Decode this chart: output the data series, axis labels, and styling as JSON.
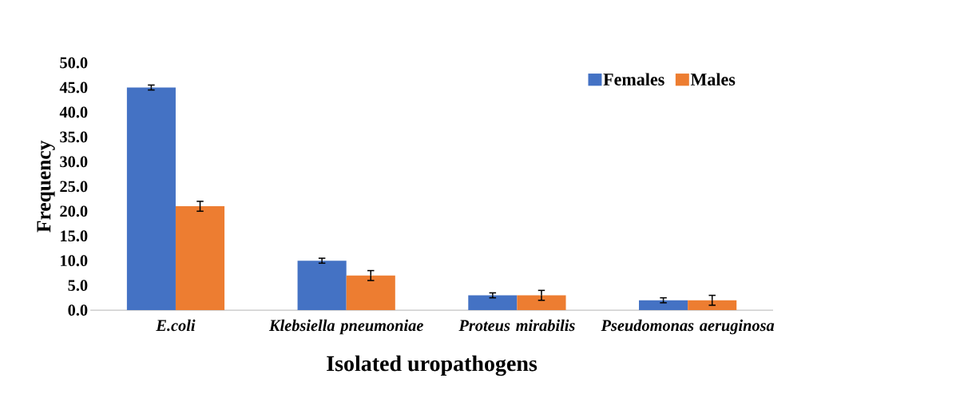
{
  "chart_data": {
    "type": "bar",
    "xlabel": "Isolated uropathogens",
    "ylabel": "Frequency",
    "categories": [
      "E.coli",
      "Klebsiella pneumoniae",
      "Proteus mirabilis",
      "Pseudomonas aeruginosa"
    ],
    "series": [
      {
        "name": "Females",
        "color": "#4472c4",
        "values": [
          45,
          10,
          3,
          2
        ],
        "errors": [
          0.5,
          0.5,
          0.5,
          0.5
        ]
      },
      {
        "name": "Males",
        "color": "#ed7d31",
        "values": [
          21,
          7,
          3,
          2
        ],
        "errors": [
          1,
          1,
          1,
          1
        ]
      }
    ],
    "ylim": [
      0,
      50
    ],
    "yticks": [
      {
        "value": 0,
        "label": "0.0"
      },
      {
        "value": 5,
        "label": "5.0"
      },
      {
        "value": 10,
        "label": "10.0"
      },
      {
        "value": 15,
        "label": "15.0"
      },
      {
        "value": 20,
        "label": "20.0"
      },
      {
        "value": 25,
        "label": "25.0"
      },
      {
        "value": 30,
        "label": "30.0"
      },
      {
        "value": 35,
        "label": "35.0"
      },
      {
        "value": 40,
        "label": "40.0"
      },
      {
        "value": 45,
        "label": "45.0"
      },
      {
        "value": 50,
        "label": "50.0"
      }
    ],
    "grid": false,
    "legend": "top right"
  }
}
